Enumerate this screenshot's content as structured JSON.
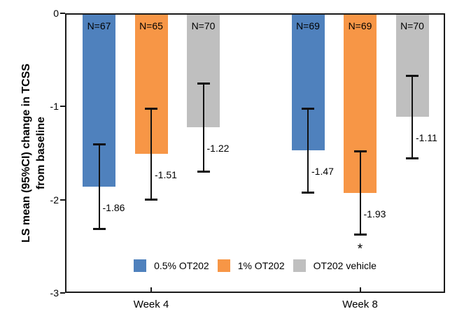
{
  "chart_data": {
    "type": "bar",
    "title": "",
    "xlabel": "",
    "ylabel": "LS mean (95%CI) change in TCSS from baseline",
    "ylabel_line1": "LS mean (95%CI) change in TCSS",
    "ylabel_line2": "from baseline",
    "ylim": [
      -3,
      0
    ],
    "ytick_labels": [
      "0",
      "-1",
      "-2",
      "-3"
    ],
    "ytick_values": [
      0,
      -1,
      -2,
      -3
    ],
    "categories": [
      "Week 4",
      "Week 8"
    ],
    "grid": false,
    "legend_position": "bottom-center-inside",
    "error_bars": "95% CI",
    "series": [
      {
        "name": "0.5% OT202",
        "color": "#4F81BD",
        "values": [
          -1.86,
          -1.47
        ],
        "value_labels": [
          "-1.86",
          "-1.47"
        ],
        "ci_upper": [
          -1.4,
          -1.02
        ],
        "ci_lower": [
          -2.32,
          -1.93
        ],
        "n_labels": [
          "N=67",
          "N=69"
        ],
        "significance": [
          "",
          ""
        ]
      },
      {
        "name": "1% OT202",
        "color": "#F79646",
        "values": [
          -1.51,
          -1.93
        ],
        "value_labels": [
          "-1.51",
          "-1.93"
        ],
        "ci_upper": [
          -1.02,
          -1.48
        ],
        "ci_lower": [
          -2.0,
          -2.38
        ],
        "n_labels": [
          "N=65",
          "N=69"
        ],
        "significance": [
          "",
          "*"
        ]
      },
      {
        "name": "OT202 vehicle",
        "color": "#BFBFBF",
        "values": [
          -1.22,
          -1.11
        ],
        "value_labels": [
          "-1.22",
          "-1.11"
        ],
        "ci_upper": [
          -0.75,
          -0.67
        ],
        "ci_lower": [
          -1.7,
          -1.56
        ],
        "n_labels": [
          "N=70",
          "N=70"
        ],
        "significance": [
          "",
          ""
        ]
      }
    ]
  }
}
